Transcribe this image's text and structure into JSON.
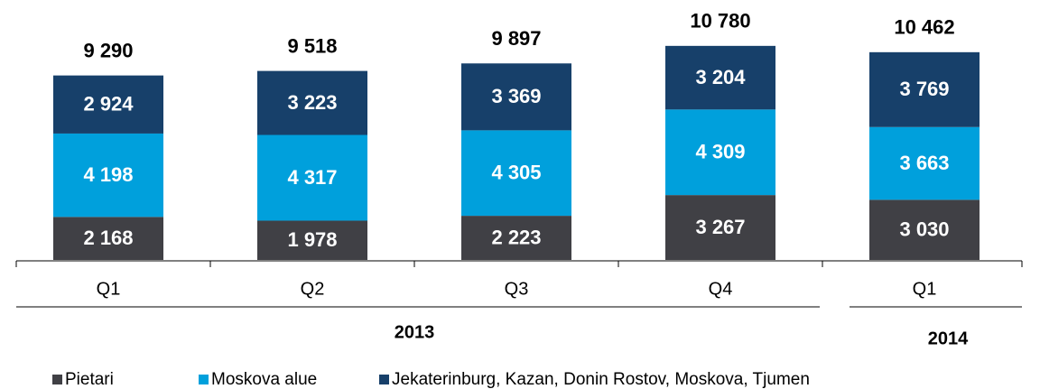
{
  "chart_data": {
    "type": "stacked_bar",
    "categories": [
      "Q1",
      "Q2",
      "Q3",
      "Q4",
      "Q1"
    ],
    "groups": [
      {
        "name": "2013",
        "categories": 4
      },
      {
        "name": "2014",
        "categories": 1
      }
    ],
    "series": [
      {
        "name": "Pietari",
        "color": "#404045",
        "values": [
          2168,
          1978,
          2223,
          3267,
          3030
        ],
        "value_labels": [
          "2 168",
          "1 978",
          "2 223",
          "3 267",
          "3 030"
        ]
      },
      {
        "name": "Moskova alue",
        "color": "#00a0dc",
        "values": [
          4198,
          4317,
          4305,
          4309,
          3663
        ],
        "value_labels": [
          "4 198",
          "4 317",
          "4 305",
          "4 309",
          "3 663"
        ]
      },
      {
        "name": "Jekaterinburg, Kazan, Donin Rostov, Moskova, Tjumen",
        "color": "#17406a",
        "values": [
          2924,
          3223,
          3369,
          3204,
          3769
        ],
        "value_labels": [
          "2 924",
          "3 223",
          "3 369",
          "3 204",
          "3 769"
        ]
      }
    ],
    "totals": [
      9290,
      9518,
      9897,
      10780,
      10462
    ],
    "total_labels": [
      "9 290",
      "9 518",
      "9 897",
      "10 780",
      "10 462"
    ]
  }
}
